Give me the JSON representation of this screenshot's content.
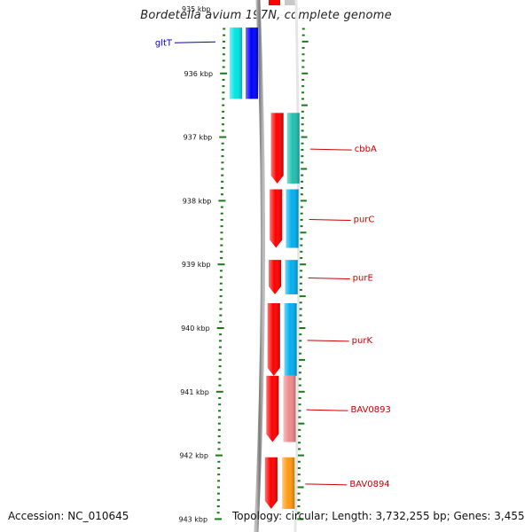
{
  "title": "Bordetella avium 197N, complete genome",
  "footer": {
    "accession": "Accession: NC_010645",
    "topology": "Topology: circular; Length: 3,732,255 bp; Genes: 3,455"
  },
  "colors": {
    "tick": "#1a7a1a",
    "label_line_forward": "#0000cc",
    "label_line_reverse": "#cc0000",
    "backbone": "#8a8a8a",
    "forward_gene": "#0000ff",
    "forward_cog": "#00e5e5",
    "reverse_gene": "#ff0000",
    "cog_teal": "#20c0b0",
    "cog_skyblue": "#00b0f0",
    "cog_pink": "#f08a8a",
    "cog_orange": "#ff9a10"
  },
  "scale": {
    "start_kbp": 935,
    "end_kbp": 943,
    "labels": [
      "935 kbp",
      "936 kbp",
      "937 kbp",
      "938 kbp",
      "939 kbp",
      "940 kbp",
      "941 kbp",
      "942 kbp",
      "943 kbp"
    ]
  },
  "genes": [
    {
      "name": "gltT",
      "strand": "+",
      "start_kbp": 935.28,
      "end_kbp": 936.4,
      "cog_color": "#00e5e5",
      "gene_color": "#0000ff"
    },
    {
      "name": "cbbA",
      "strand": "-",
      "start_kbp": 936.62,
      "end_kbp": 937.73,
      "cog_color": "#20c0b0",
      "gene_color": "#ff0000"
    },
    {
      "name": "purC",
      "strand": "-",
      "start_kbp": 937.82,
      "end_kbp": 938.74,
      "cog_color": "#00b0f0",
      "gene_color": "#ff0000"
    },
    {
      "name": "purE",
      "strand": "-",
      "start_kbp": 938.93,
      "end_kbp": 939.47,
      "cog_color": "#00b0f0",
      "gene_color": "#ff0000"
    },
    {
      "name": "purK",
      "strand": "-",
      "start_kbp": 939.61,
      "end_kbp": 940.75,
      "cog_color": "#00b0f0",
      "gene_color": "#ff0000"
    },
    {
      "name": "BAV0893",
      "strand": "-",
      "start_kbp": 940.75,
      "end_kbp": 941.79,
      "cog_color": "#f08a8a",
      "gene_color": "#ff0000"
    },
    {
      "name": "BAV0894",
      "strand": "-",
      "start_kbp": 942.03,
      "end_kbp": 942.84,
      "cog_color": "#ff9a10",
      "gene_color": "#ff0000"
    }
  ]
}
